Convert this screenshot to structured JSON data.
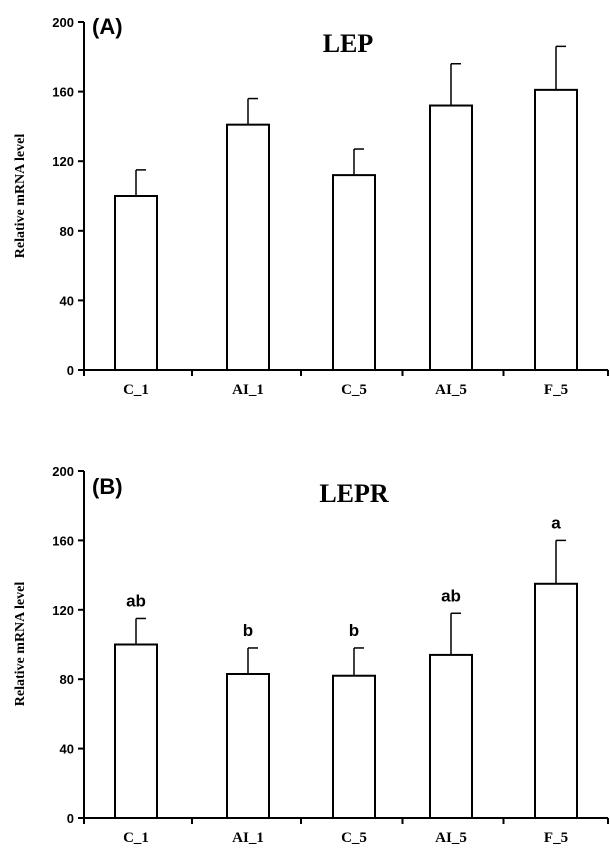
{
  "chart_data": [
    {
      "type": "bar",
      "panel": "(A)",
      "title": "LEP",
      "xlabel": "",
      "ylabel": "Relative mRNA level",
      "ylim": [
        0,
        200
      ],
      "yticks": [
        0,
        40,
        80,
        120,
        160,
        200
      ],
      "categories": [
        "C_1",
        "AI_1",
        "C_5",
        "AI_5",
        "F_5"
      ],
      "values": [
        100,
        141,
        112,
        152,
        161
      ],
      "errors": [
        15,
        15,
        15,
        24,
        25
      ],
      "annotations": [
        "",
        "",
        "",
        "",
        ""
      ],
      "grid": false,
      "legend": "none"
    },
    {
      "type": "bar",
      "panel": "(B)",
      "title": "LEPR",
      "xlabel": "",
      "ylabel": "Relative mRNA level",
      "ylim": [
        0,
        200
      ],
      "yticks": [
        0,
        40,
        80,
        120,
        160,
        200
      ],
      "categories": [
        "C_1",
        "AI_1",
        "C_5",
        "AI_5",
        "F_5"
      ],
      "values": [
        100,
        83,
        82,
        94,
        135
      ],
      "errors": [
        15,
        15,
        16,
        24,
        25
      ],
      "annotations": [
        "ab",
        "b",
        "b",
        "ab",
        "a"
      ],
      "grid": false,
      "legend": "none"
    }
  ]
}
